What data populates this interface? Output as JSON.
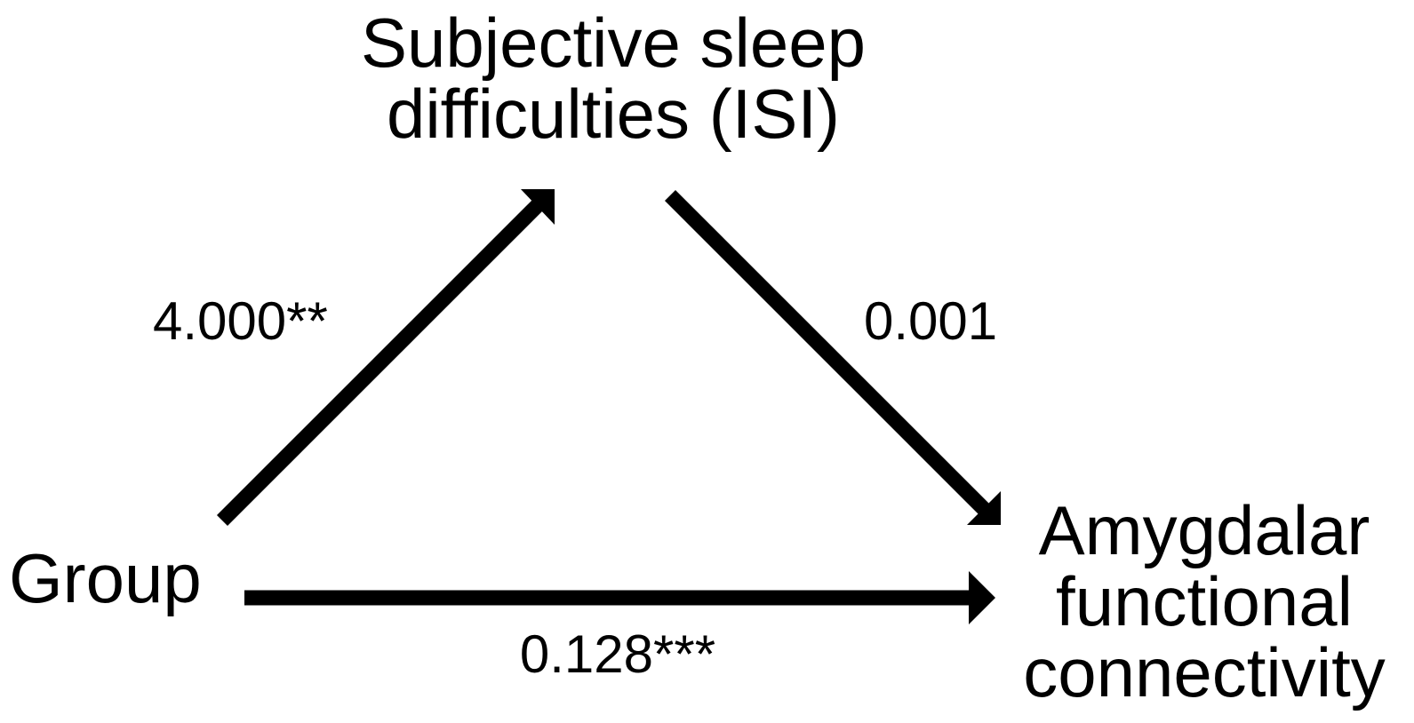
{
  "nodes": [
    {
      "label": [
        "Subjective sleep",
        "difficulties (ISI)"
      ]
    },
    {
      "label": [
        "Group"
      ]
    },
    {
      "label": [
        "Amygdalar",
        "functional",
        "connectivity"
      ]
    }
  ],
  "edges": [
    {
      "label": "4.000**"
    },
    {
      "label": "0.001"
    },
    {
      "label": "0.128***"
    }
  ]
}
